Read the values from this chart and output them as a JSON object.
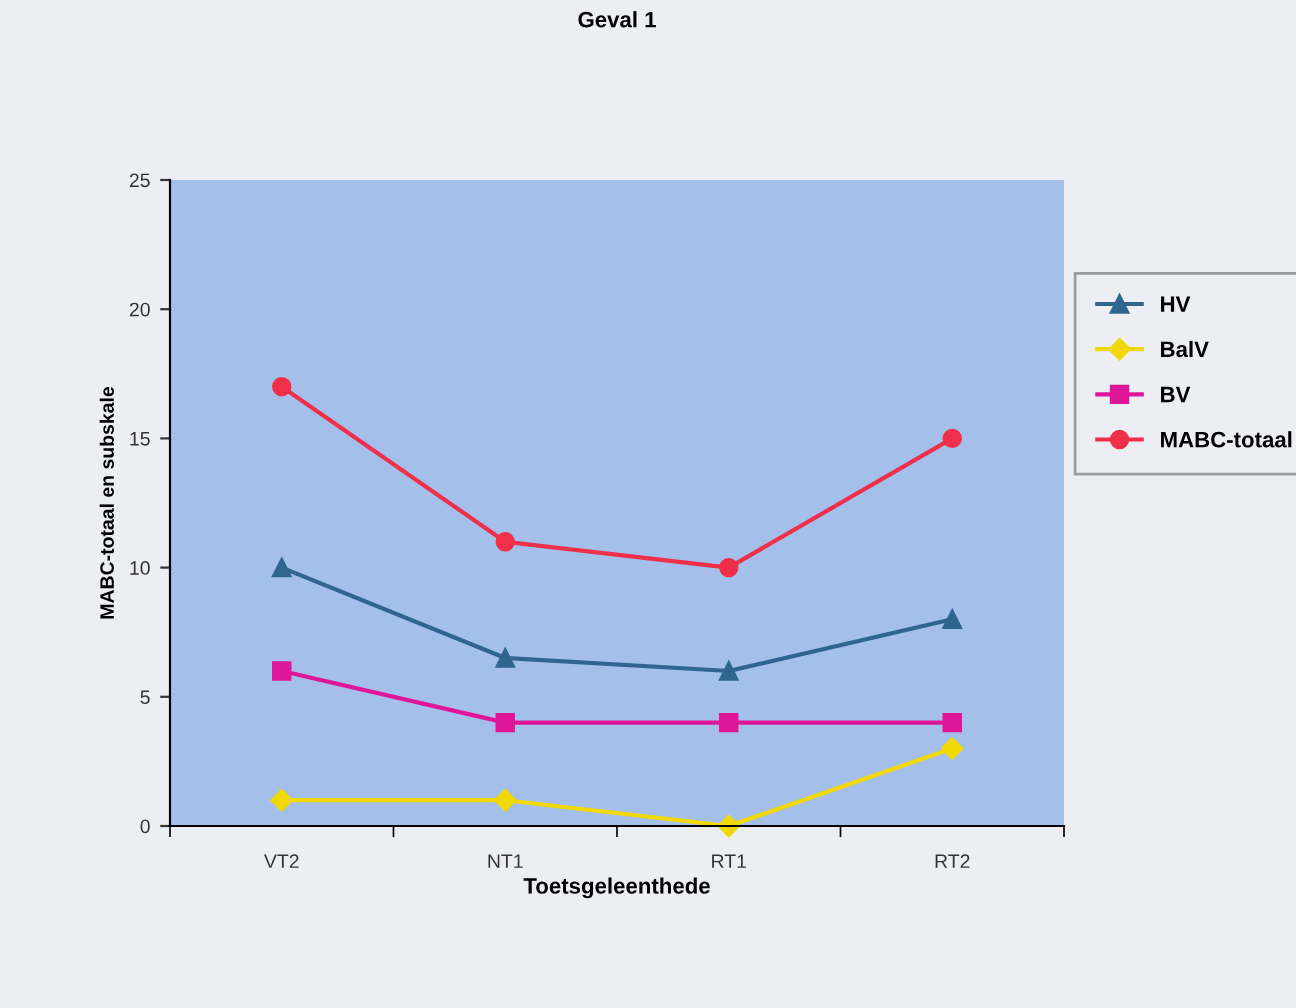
{
  "chart_data": {
    "type": "line",
    "title": "Geval 1",
    "xlabel": "Toetsgeleenthede",
    "ylabel": "MABC-totaal en subskale",
    "categories": [
      "VT2",
      "NT1",
      "RT1",
      "RT2"
    ],
    "series": [
      {
        "name": "HV",
        "color": "#2f6690",
        "marker": "triangle",
        "values": [
          10,
          6.5,
          6,
          8
        ]
      },
      {
        "name": "BalV",
        "color": "#f0d800",
        "marker": "diamond",
        "values": [
          1,
          1,
          0,
          3
        ]
      },
      {
        "name": "BV",
        "color": "#e0169a",
        "marker": "square",
        "values": [
          6,
          4,
          4,
          4
        ]
      },
      {
        "name": "MABC-totaal",
        "color": "#f0304a",
        "marker": "circle",
        "values": [
          17,
          11,
          10,
          15
        ]
      }
    ],
    "ylim": [
      0,
      25
    ],
    "yticks": [
      0,
      5,
      10,
      15,
      20,
      25
    ],
    "grid": false,
    "legend": "right"
  }
}
